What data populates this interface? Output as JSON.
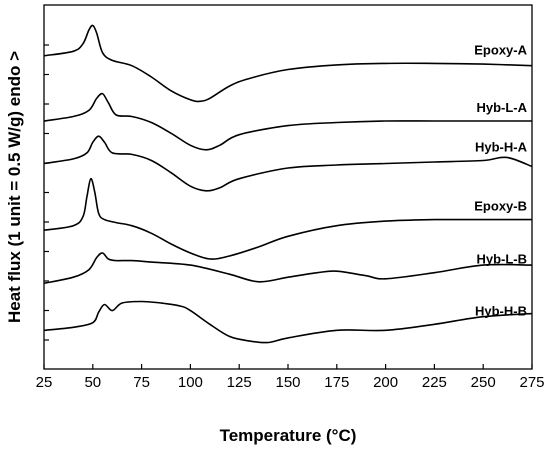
{
  "chart_data": {
    "type": "line",
    "xlabel": "Temperature (°C)",
    "ylabel": "Heat flux (1 unit = 0.5 W/g) endo >",
    "xlim": [
      25,
      275
    ],
    "xticks": [
      25,
      50,
      75,
      100,
      125,
      150,
      175,
      200,
      225,
      250,
      275
    ],
    "y_tick_labels": "none",
    "grid": false,
    "legend": "none (labels printed next to curves, right side)",
    "series": [
      {
        "name": "Epoxy-A",
        "x": [
          25,
          40,
          45,
          48,
          50,
          52,
          55,
          60,
          70,
          80,
          90,
          100,
          105,
          110,
          120,
          130,
          150,
          175,
          200,
          225,
          250,
          275
        ],
        "y": [
          4.68,
          4.74,
          4.84,
          5.02,
          5.08,
          4.98,
          4.72,
          4.62,
          4.55,
          4.4,
          4.22,
          4.1,
          4.08,
          4.12,
          4.28,
          4.38,
          4.5,
          4.56,
          4.58,
          4.58,
          4.57,
          4.55
        ]
      },
      {
        "name": "Hyb-L-A",
        "x": [
          25,
          40,
          48,
          52,
          55,
          58,
          62,
          70,
          80,
          90,
          100,
          108,
          115,
          125,
          150,
          175,
          200,
          225,
          250,
          275
        ],
        "y": [
          3.82,
          3.88,
          3.96,
          4.12,
          4.18,
          4.06,
          3.9,
          3.88,
          3.8,
          3.66,
          3.5,
          3.44,
          3.5,
          3.64,
          3.76,
          3.8,
          3.82,
          3.82,
          3.82,
          3.82
        ]
      },
      {
        "name": "Hyb-H-A",
        "x": [
          25,
          40,
          47,
          50,
          53,
          56,
          60,
          70,
          80,
          90,
          100,
          108,
          115,
          125,
          150,
          175,
          200,
          225,
          250,
          262,
          275
        ],
        "y": [
          3.26,
          3.32,
          3.4,
          3.54,
          3.62,
          3.54,
          3.4,
          3.38,
          3.3,
          3.14,
          2.96,
          2.9,
          2.94,
          3.06,
          3.2,
          3.24,
          3.26,
          3.28,
          3.3,
          3.34,
          3.22
        ]
      },
      {
        "name": "Epoxy-B",
        "x": [
          25,
          40,
          45,
          47,
          49,
          51,
          53,
          56,
          62,
          70,
          80,
          90,
          100,
          110,
          120,
          135,
          150,
          175,
          200,
          225,
          250,
          275
        ],
        "y": [
          2.38,
          2.44,
          2.56,
          2.82,
          3.06,
          2.88,
          2.6,
          2.52,
          2.48,
          2.44,
          2.34,
          2.2,
          2.08,
          2.0,
          2.04,
          2.16,
          2.3,
          2.44,
          2.5,
          2.52,
          2.52,
          2.52
        ]
      },
      {
        "name": "Hyb-L-B",
        "x": [
          25,
          40,
          48,
          52,
          55,
          58,
          62,
          70,
          80,
          100,
          120,
          135,
          150,
          165,
          175,
          190,
          200,
          225,
          250,
          275
        ],
        "y": [
          1.68,
          1.76,
          1.86,
          2.02,
          2.08,
          2.0,
          1.98,
          1.98,
          1.96,
          1.92,
          1.8,
          1.7,
          1.76,
          1.82,
          1.84,
          1.78,
          1.74,
          1.82,
          1.92,
          1.92
        ]
      },
      {
        "name": "Hyb-H-B",
        "x": [
          25,
          40,
          50,
          53,
          56,
          60,
          65,
          75,
          85,
          95,
          100,
          110,
          120,
          130,
          140,
          150,
          175,
          200,
          225,
          250,
          275
        ],
        "y": [
          1.06,
          1.1,
          1.16,
          1.3,
          1.4,
          1.32,
          1.42,
          1.44,
          1.42,
          1.38,
          1.32,
          1.14,
          0.98,
          0.92,
          0.9,
          0.96,
          1.06,
          1.06,
          1.14,
          1.24,
          1.28
        ]
      }
    ],
    "line_color": "#000000"
  }
}
